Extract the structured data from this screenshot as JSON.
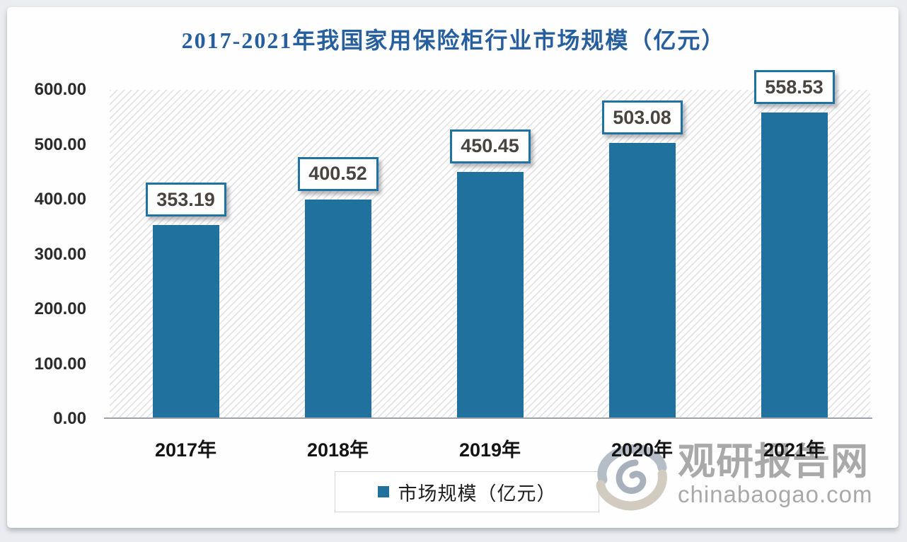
{
  "chart_data": {
    "type": "bar",
    "title": "2017-2021年我国家用保险柜行业市场规模（亿元）",
    "categories": [
      "2017年",
      "2018年",
      "2019年",
      "2020年",
      "2021年"
    ],
    "values": [
      353.19,
      400.52,
      450.45,
      503.08,
      558.53
    ],
    "value_labels": [
      "353.19",
      "400.52",
      "450.45",
      "503.08",
      "558.53"
    ],
    "series": [
      {
        "name": "市场规模（亿元）",
        "values": [
          353.19,
          400.52,
          450.45,
          503.08,
          558.53
        ]
      }
    ],
    "xlabel": "",
    "ylabel": "",
    "ylim": [
      0,
      600
    ],
    "ytick_interval": 100,
    "yticks": [
      "600.00",
      "500.00",
      "400.00",
      "300.00",
      "200.00",
      "100.00",
      "0.00"
    ],
    "grid": false,
    "legend_position": "bottom-center",
    "bar_color": "#21719F",
    "plot_background": "white with light gray diagonal hatch"
  },
  "legend": {
    "label": "市场规模（亿元）",
    "marker_color": "#21719F"
  },
  "watermark": {
    "brand": "观研报告网",
    "domain": "chinabaogao.com",
    "logo": "swirl-logo"
  },
  "colors": {
    "title_text": "#275F9E",
    "bar_fill": "#21719F",
    "value_box_border": "#1E73A4",
    "value_text": "#494440",
    "axis_text": "#2B2B2B",
    "axis_line": "#9FA3A9",
    "watermark_text": "#9B9B9B",
    "outer_background": "#EAECF0",
    "card_background": "#FEFEFE"
  }
}
